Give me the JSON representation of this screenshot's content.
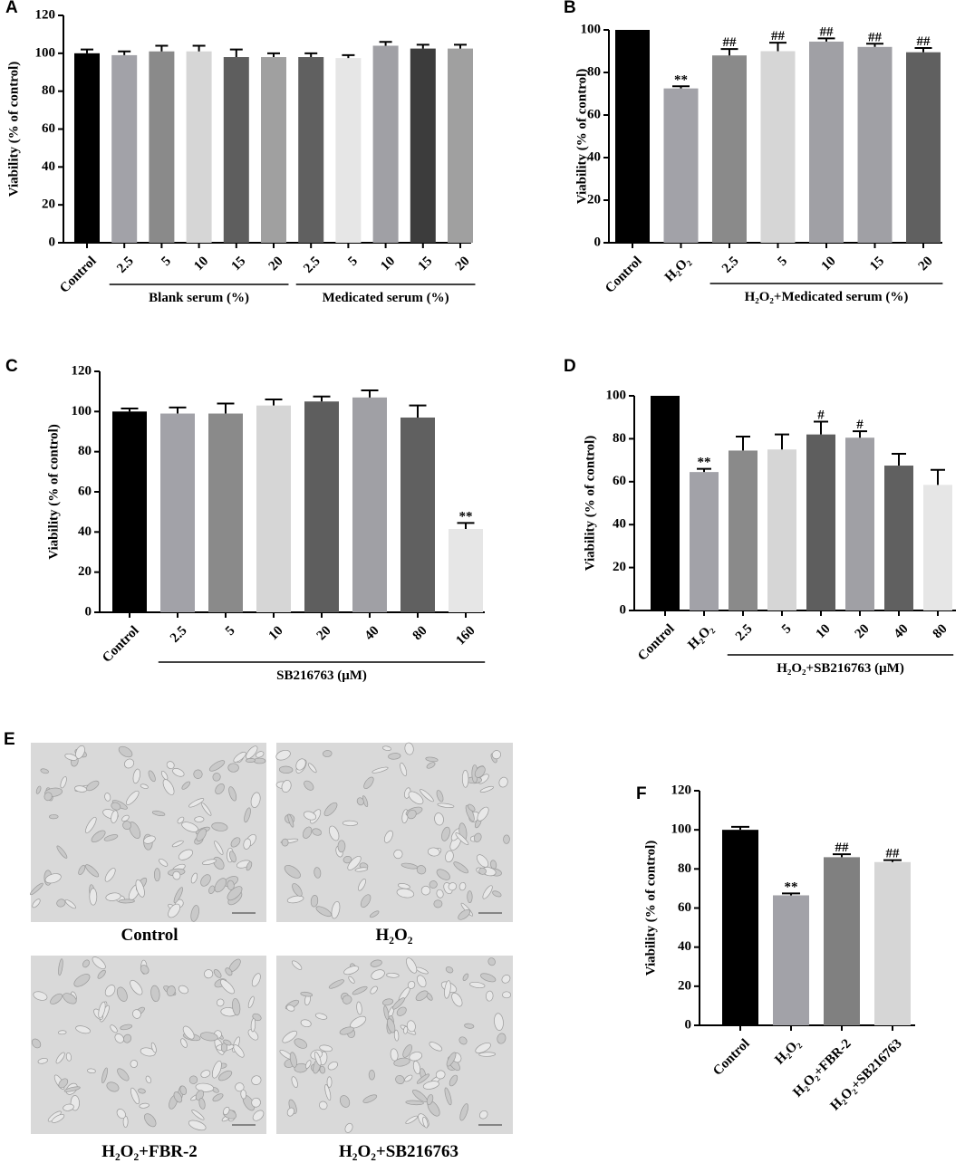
{
  "chart_data": [
    {
      "type": "bar",
      "panel": "A",
      "ylabel": "Viability (% of control)",
      "categories": [
        "Control",
        "2.5",
        "5",
        "10",
        "15",
        "20",
        "2.5",
        "5",
        "10",
        "15",
        "20"
      ],
      "values": [
        100,
        99,
        101,
        101,
        98,
        98,
        98,
        97.5,
        104,
        102.5,
        102.5
      ],
      "errors": [
        2,
        2,
        3,
        3,
        4,
        2,
        2,
        1.5,
        2,
        2,
        2
      ],
      "annotations": [
        null,
        null,
        null,
        null,
        null,
        null,
        null,
        null,
        null,
        null,
        null
      ],
      "colors": [
        "#000000",
        "#a2a2a8",
        "#8a8a8a",
        "#d6d6d6",
        "#5e5e5e",
        "#a0a0a0",
        "#606060",
        "#e6e6e6",
        "#a0a0a5",
        "#3c3c3c",
        "#a0a0a0"
      ],
      "groups": [
        {
          "label": "Blank serum (%)"
        },
        {
          "label": "Medicated serum (%)"
        }
      ],
      "ylim": [
        0,
        120
      ],
      "yticks": [
        0,
        20,
        40,
        60,
        80,
        100,
        120
      ]
    },
    {
      "type": "bar",
      "panel": "B",
      "ylabel": "Viability (% of control)",
      "categories": [
        "Control",
        "H₂O₂",
        "2.5",
        "5",
        "10",
        "15",
        "20"
      ],
      "values": [
        100,
        72.5,
        88,
        90,
        94.5,
        92,
        89.5
      ],
      "errors": [
        null,
        1,
        3,
        4,
        1.5,
        1.5,
        2
      ],
      "annotations": [
        null,
        "**",
        "##",
        "##",
        "##",
        "##",
        "##"
      ],
      "colors": [
        "#000000",
        "#a2a2a8",
        "#8a8a8a",
        "#d6d6d6",
        "#a0a0a5",
        "#a0a0a5",
        "#606060"
      ],
      "groups": [
        {
          "label": "H₂O₂+Medicated serum (%)"
        }
      ],
      "ylim": [
        0,
        100
      ],
      "yticks": [
        0,
        20,
        40,
        60,
        80,
        100
      ]
    },
    {
      "type": "bar",
      "panel": "C",
      "ylabel": "Viability (% of control)",
      "categories": [
        "Control",
        "2.5",
        "5",
        "10",
        "20",
        "40",
        "80",
        "160"
      ],
      "values": [
        100,
        99,
        99,
        103,
        105,
        107,
        97,
        41.5
      ],
      "errors": [
        1.5,
        3,
        5,
        3,
        2.5,
        3.5,
        6,
        3
      ],
      "annotations": [
        null,
        null,
        null,
        null,
        null,
        null,
        null,
        "**"
      ],
      "colors": [
        "#000000",
        "#a2a2a8",
        "#8a8a8a",
        "#d6d6d6",
        "#5e5e5e",
        "#a0a0a5",
        "#606060",
        "#e6e6e6"
      ],
      "groups": [
        {
          "label": "SB216763 (μM)"
        }
      ],
      "ylim": [
        0,
        120
      ],
      "yticks": [
        0,
        20,
        40,
        60,
        80,
        100,
        120
      ]
    },
    {
      "type": "bar",
      "panel": "D",
      "ylabel": "Viability (% of control)",
      "categories": [
        "Control",
        "H₂O₂",
        "2.5",
        "5",
        "10",
        "20",
        "40",
        "80"
      ],
      "values": [
        100,
        64.5,
        74.5,
        75,
        82,
        80.5,
        67.5,
        58.5
      ],
      "errors": [
        null,
        1.5,
        6.5,
        7,
        6,
        3,
        5.5,
        7
      ],
      "annotations": [
        null,
        "**",
        null,
        null,
        "#",
        "#",
        null,
        null
      ],
      "colors": [
        "#000000",
        "#a2a2a8",
        "#8a8a8a",
        "#d6d6d6",
        "#5e5e5e",
        "#a0a0a5",
        "#606060",
        "#e6e6e6"
      ],
      "groups": [
        {
          "label": "H₂O₂+SB216763 (μM)"
        }
      ],
      "ylim": [
        0,
        100
      ],
      "yticks": [
        0,
        20,
        40,
        60,
        80,
        100
      ]
    },
    {
      "type": "bar",
      "panel": "F",
      "ylabel": "Viability (% of control)",
      "categories": [
        "Control",
        "H₂O₂",
        "H₂O₂+FBR-2",
        "H₂O₂+SB216763"
      ],
      "values": [
        100,
        66.5,
        86,
        83.5
      ],
      "errors": [
        1.5,
        1,
        1.5,
        1
      ],
      "annotations": [
        null,
        "**",
        "##",
        "##"
      ],
      "colors": [
        "#000000",
        "#a2a2a8",
        "#808080",
        "#d6d6d6"
      ],
      "groups": [],
      "ylim": [
        0,
        120
      ],
      "yticks": [
        0,
        20,
        40,
        60,
        80,
        100,
        120
      ]
    }
  ],
  "images": {
    "panel": "E",
    "captions": [
      "Control",
      "H₂O₂",
      "H₂O₂+FBR-2",
      "H₂O₂+SB216763"
    ]
  }
}
